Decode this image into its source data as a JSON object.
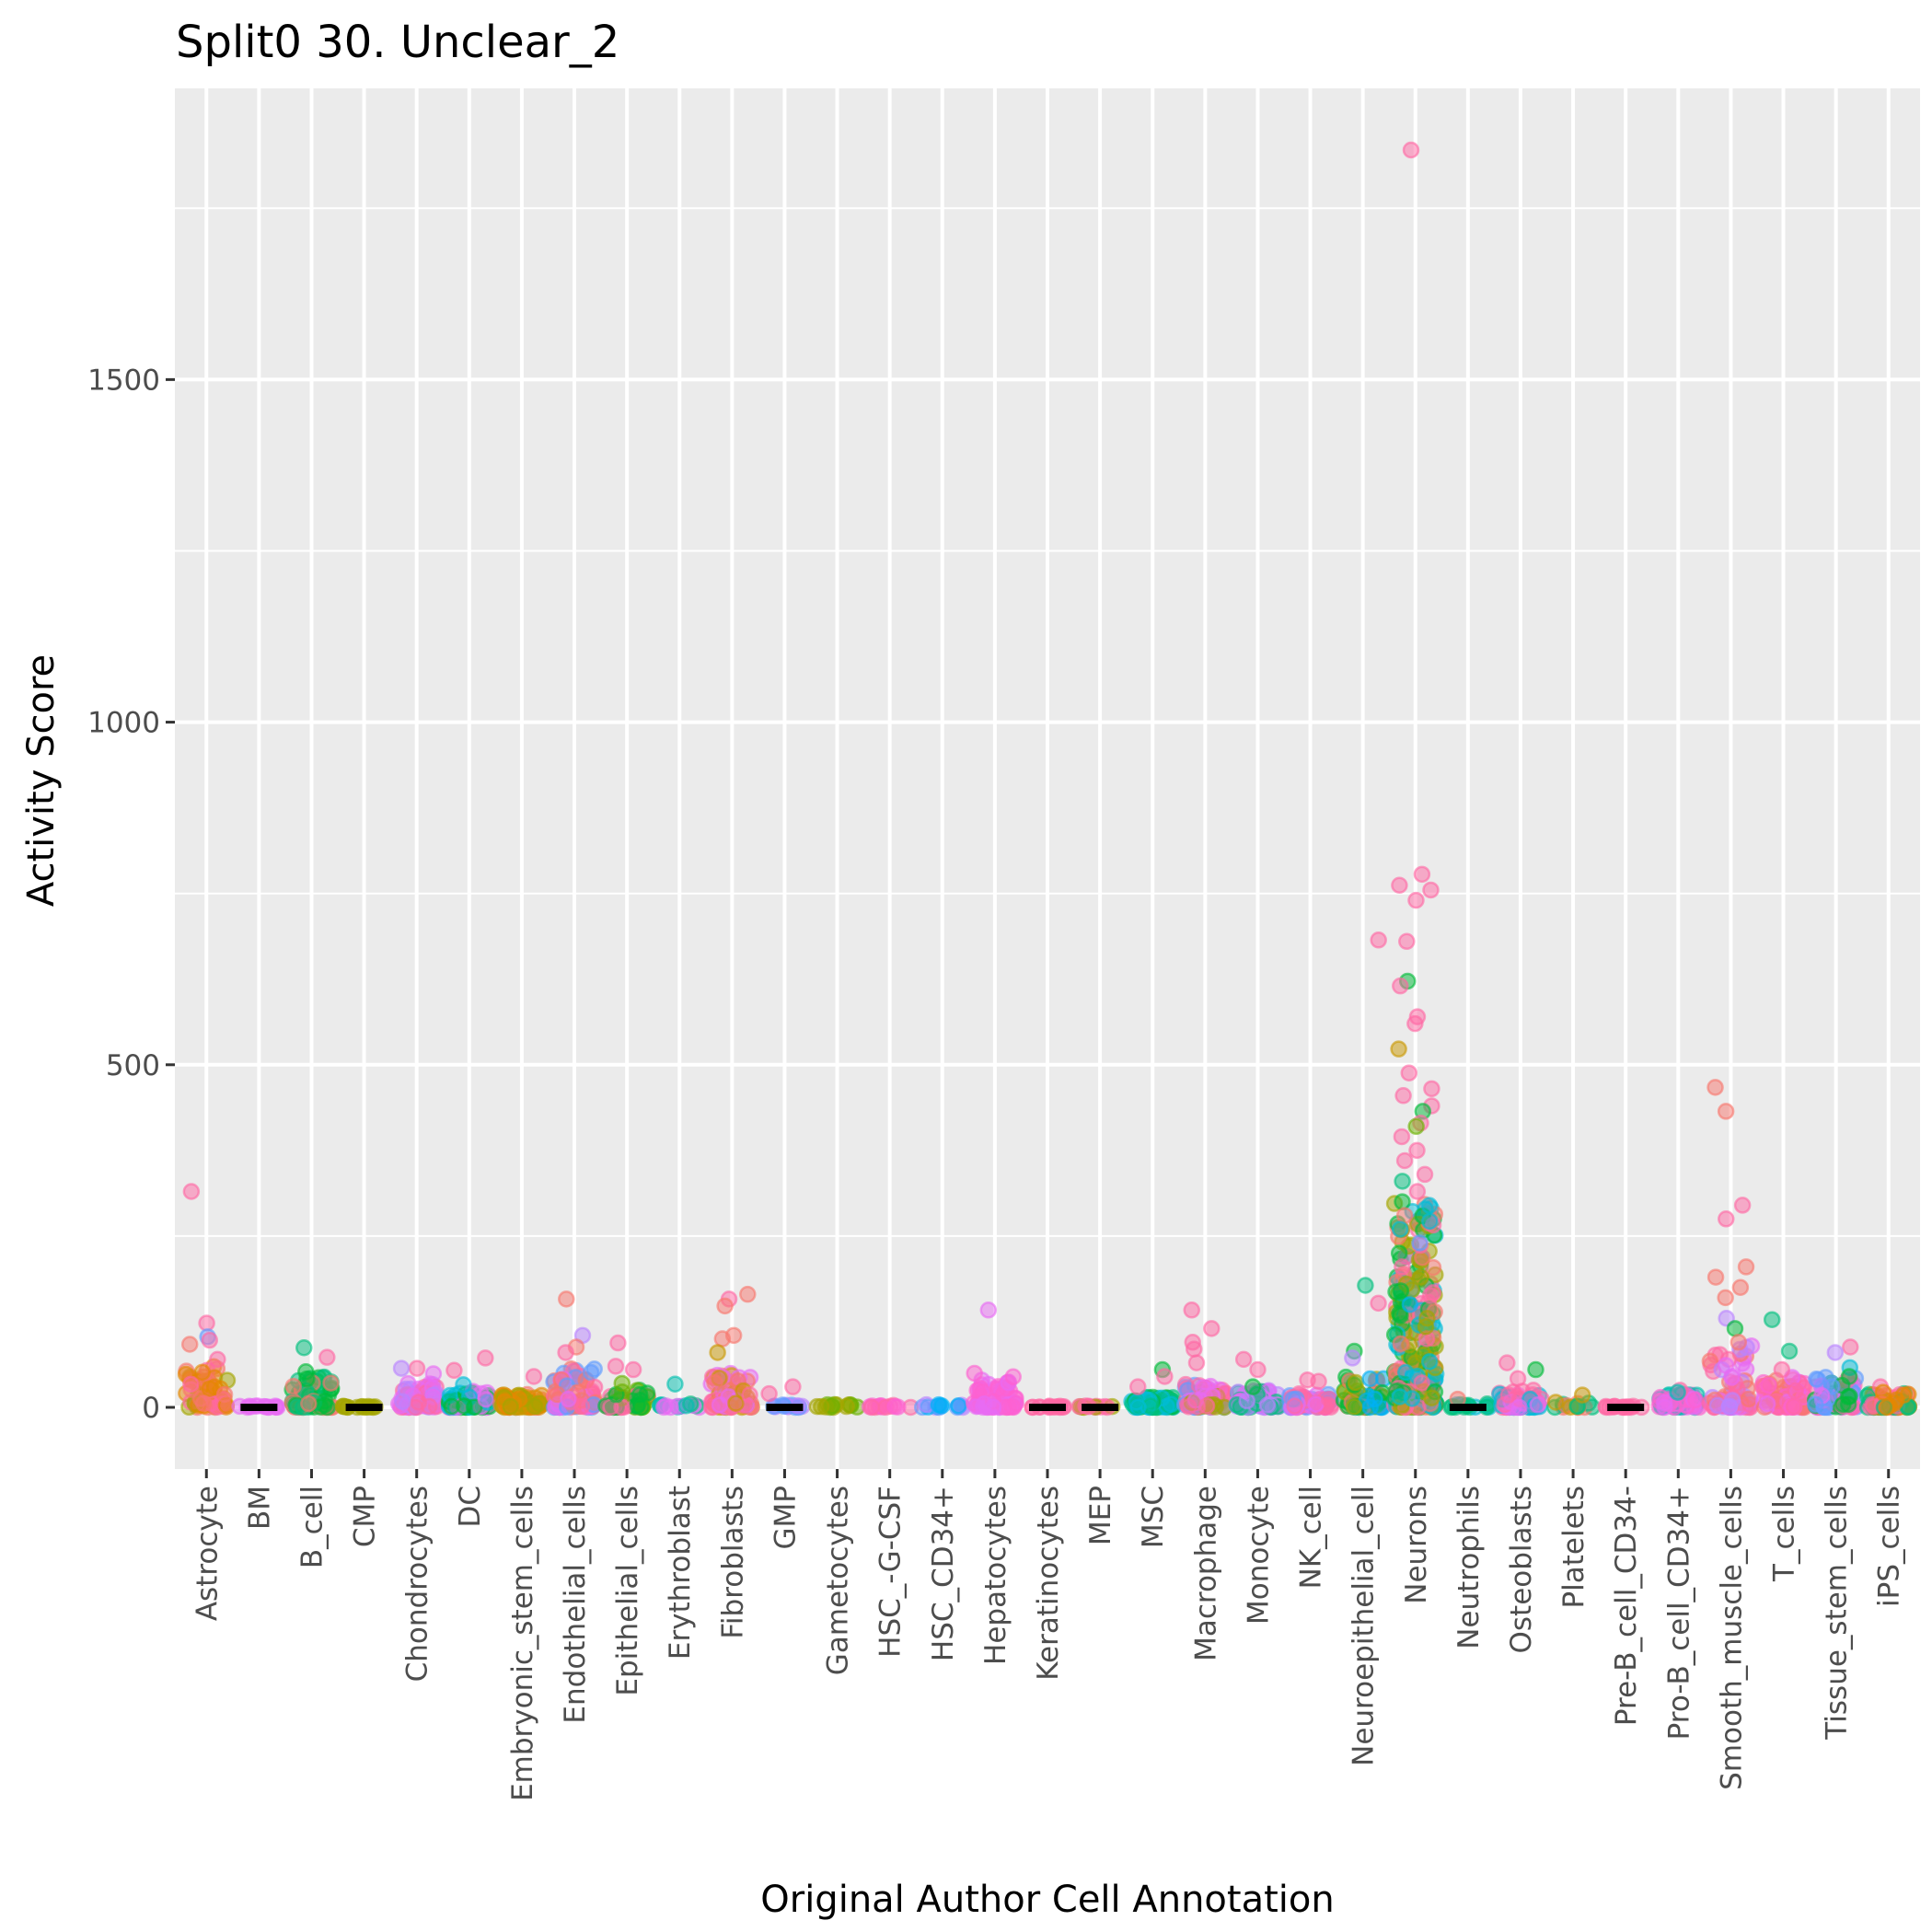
{
  "chart_data": {
    "type": "scatter",
    "subtype": "jitter strip plot",
    "title": "Split0 30. Unclear_2",
    "xlabel": "Original Author Cell Annotation",
    "ylabel": "Activity Score",
    "ylim": [
      -90,
      1925
    ],
    "yticks": [
      0,
      500,
      1000,
      1500
    ],
    "ytick_labels": [
      "0",
      "500",
      "1000",
      "1500"
    ],
    "y_minor_gridlines": [
      250,
      750,
      1250,
      1750
    ],
    "grid": true,
    "legend": "none",
    "categories": [
      "Astrocyte",
      "BM",
      "B_cell",
      "CMP",
      "Chondrocytes",
      "DC",
      "Embryonic_stem_cells",
      "Endothelial_cells",
      "Epithelial_cells",
      "Erythroblast",
      "Fibroblasts",
      "GMP",
      "Gametocytes",
      "HSC_-G-CSF",
      "HSC_CD34+",
      "Hepatocytes",
      "Keratinocytes",
      "MEP",
      "MSC",
      "Macrophage",
      "Monocyte",
      "NK_cell",
      "Neuroepithelial_cell",
      "Neurons",
      "Neutrophils",
      "Osteoblasts",
      "Platelets",
      "Pre-B_cell_CD34-",
      "Pro-B_cell_CD34+",
      "Smooth_muscle_cells",
      "T_cells",
      "Tissue_stem_cells",
      "iPS_cells"
    ],
    "median_markers": [
      "BM",
      "CMP",
      "GMP",
      "Keratinocytes",
      "MEP",
      "Neutrophils",
      "Pre-B_cell_CD34-"
    ],
    "palette": [
      "#F8766D",
      "#E58700",
      "#C99800",
      "#A3A500",
      "#6BB100",
      "#00BA38",
      "#00BF7D",
      "#00C0AF",
      "#00BCD8",
      "#00B0F6",
      "#619CFF",
      "#B983FF",
      "#E76BF3",
      "#FD61D1",
      "#FF67A4"
    ],
    "bulk": [
      {
        "category": "Astrocyte",
        "max_dense": 60,
        "colors": [
          "#FF67A4",
          "#F8766D",
          "#E58700",
          "#A3A500"
        ]
      },
      {
        "category": "BM",
        "max_dense": 2,
        "colors": [
          "#E76BF3"
        ]
      },
      {
        "category": "B_cell",
        "max_dense": 45,
        "colors": [
          "#F8766D",
          "#00BA38",
          "#00BF7D"
        ]
      },
      {
        "category": "CMP",
        "max_dense": 2,
        "colors": [
          "#A3A500"
        ]
      },
      {
        "category": "Chondrocytes",
        "max_dense": 35,
        "colors": [
          "#FF67A4",
          "#B983FF",
          "#E76BF3"
        ]
      },
      {
        "category": "DC",
        "max_dense": 25,
        "colors": [
          "#00BCD8",
          "#00BA38",
          "#E76BF3"
        ]
      },
      {
        "category": "Embryonic_stem_cells",
        "max_dense": 20,
        "colors": [
          "#F8766D",
          "#E58700",
          "#C99800",
          "#A3A500"
        ]
      },
      {
        "category": "Endothelial_cells",
        "max_dense": 60,
        "colors": [
          "#FF67A4",
          "#F8766D",
          "#619CFF",
          "#E76BF3"
        ]
      },
      {
        "category": "Epithelial_cells",
        "max_dense": 25,
        "colors": [
          "#00BA38",
          "#6BB100",
          "#FF67A4"
        ]
      },
      {
        "category": "Erythroblast",
        "max_dense": 5,
        "colors": [
          "#E76BF3",
          "#00BF7D",
          "#00C0AF"
        ]
      },
      {
        "category": "Fibroblasts",
        "max_dense": 50,
        "colors": [
          "#F8766D",
          "#FF67A4",
          "#E76BF3",
          "#C99800"
        ]
      },
      {
        "category": "GMP",
        "max_dense": 5,
        "colors": [
          "#619CFF",
          "#B983FF"
        ]
      },
      {
        "category": "Gametocytes",
        "max_dense": 5,
        "colors": [
          "#A3A500",
          "#6BB100"
        ]
      },
      {
        "category": "HSC_-G-CSF",
        "max_dense": 3,
        "colors": [
          "#FF67A4",
          "#FD61D1"
        ]
      },
      {
        "category": "HSC_CD34+",
        "max_dense": 5,
        "colors": [
          "#619CFF",
          "#00B0F6",
          "#B983FF"
        ]
      },
      {
        "category": "Hepatocytes",
        "max_dense": 50,
        "colors": [
          "#E76BF3",
          "#FD61D1"
        ]
      },
      {
        "category": "Keratinocytes",
        "max_dense": 2,
        "colors": [
          "#FF67A4"
        ]
      },
      {
        "category": "MEP",
        "max_dense": 2,
        "colors": [
          "#FF67A4",
          "#A3A500"
        ]
      },
      {
        "category": "MSC",
        "max_dense": 15,
        "colors": [
          "#00BA38",
          "#00BF7D",
          "#00BCD8"
        ]
      },
      {
        "category": "Macrophage",
        "max_dense": 35,
        "colors": [
          "#E76BF3",
          "#A3A500",
          "#619CFF",
          "#FF67A4"
        ]
      },
      {
        "category": "Monocyte",
        "max_dense": 25,
        "colors": [
          "#E76BF3",
          "#00BF7D",
          "#B983FF"
        ]
      },
      {
        "category": "NK_cell",
        "max_dense": 20,
        "colors": [
          "#FF67A4",
          "#619CFF",
          "#E76BF3"
        ]
      },
      {
        "category": "Neuroepithelial_cell",
        "max_dense": 50,
        "colors": [
          "#A3A500",
          "#00BA38",
          "#00B0F6",
          "#F8766D"
        ]
      },
      {
        "category": "Neurons",
        "max_dense": 300,
        "colors": [
          "#A3A500",
          "#00BA38",
          "#00BCD8",
          "#FF67A4",
          "#F8766D"
        ]
      },
      {
        "category": "Neutrophils",
        "max_dense": 5,
        "colors": [
          "#00BF7D",
          "#00BCD8"
        ]
      },
      {
        "category": "Osteoblasts",
        "max_dense": 25,
        "colors": [
          "#E76BF3",
          "#00BCD8",
          "#FF67A4"
        ]
      },
      {
        "category": "Platelets",
        "max_dense": 8,
        "colors": [
          "#00BF7D",
          "#C99800",
          "#F8766D"
        ]
      },
      {
        "category": "Pre-B_cell_CD34-",
        "max_dense": 2,
        "colors": [
          "#FF67A4"
        ]
      },
      {
        "category": "Pro-B_cell_CD34+",
        "max_dense": 20,
        "colors": [
          "#FD61D1",
          "#00C0AF",
          "#E76BF3"
        ]
      },
      {
        "category": "Smooth_muscle_cells",
        "max_dense": 90,
        "colors": [
          "#E76BF3",
          "#FF67A4",
          "#F8766D",
          "#B983FF"
        ]
      },
      {
        "category": "T_cells",
        "max_dense": 45,
        "colors": [
          "#FD61D1",
          "#FF67A4",
          "#F8766D",
          "#E76BF3"
        ]
      },
      {
        "category": "Tissue_stem_cells",
        "max_dense": 45,
        "colors": [
          "#E76BF3",
          "#FF67A4",
          "#619CFF",
          "#00BA38"
        ]
      },
      {
        "category": "iPS_cells",
        "max_dense": 20,
        "colors": [
          "#FF67A4",
          "#E58700",
          "#00BF7D"
        ]
      }
    ],
    "outliers": [
      {
        "category": "Astrocyte",
        "y": 315,
        "color": "#FF67A4"
      },
      {
        "category": "Astrocyte",
        "y": 123,
        "color": "#FF67A4"
      },
      {
        "category": "Astrocyte",
        "y": 103,
        "color": "#619CFF"
      },
      {
        "category": "Astrocyte",
        "y": 98,
        "color": "#FF67A4"
      },
      {
        "category": "Astrocyte",
        "y": 92,
        "color": "#F8766D"
      },
      {
        "category": "Astrocyte",
        "y": 70,
        "color": "#FF67A4"
      },
      {
        "category": "B_cell",
        "y": 87,
        "color": "#00BF7D"
      },
      {
        "category": "B_cell",
        "y": 73,
        "color": "#FF67A4"
      },
      {
        "category": "B_cell",
        "y": 52,
        "color": "#00BA38"
      },
      {
        "category": "Chondrocytes",
        "y": 57,
        "color": "#FF67A4"
      },
      {
        "category": "Chondrocytes",
        "y": 57,
        "color": "#B983FF"
      },
      {
        "category": "Chondrocytes",
        "y": 49,
        "color": "#E76BF3"
      },
      {
        "category": "DC",
        "y": 72,
        "color": "#FF67A4"
      },
      {
        "category": "DC",
        "y": 54,
        "color": "#FF67A4"
      },
      {
        "category": "DC",
        "y": 33,
        "color": "#00BCD8"
      },
      {
        "category": "Embryonic_stem_cells",
        "y": 45,
        "color": "#FF67A4"
      },
      {
        "category": "Endothelial_cells",
        "y": 158,
        "color": "#F8766D"
      },
      {
        "category": "Endothelial_cells",
        "y": 105,
        "color": "#B983FF"
      },
      {
        "category": "Endothelial_cells",
        "y": 88,
        "color": "#F8766D"
      },
      {
        "category": "Endothelial_cells",
        "y": 80,
        "color": "#FF67A4"
      },
      {
        "category": "Epithelial_cells",
        "y": 94,
        "color": "#FF67A4"
      },
      {
        "category": "Epithelial_cells",
        "y": 60,
        "color": "#FF67A4"
      },
      {
        "category": "Epithelial_cells",
        "y": 55,
        "color": "#FF67A4"
      },
      {
        "category": "Epithelial_cells",
        "y": 35,
        "color": "#6BB100"
      },
      {
        "category": "Erythroblast",
        "y": 34,
        "color": "#00C0AF"
      },
      {
        "category": "Fibroblasts",
        "y": 165,
        "color": "#F8766D"
      },
      {
        "category": "Fibroblasts",
        "y": 158,
        "color": "#FF67A4"
      },
      {
        "category": "Fibroblasts",
        "y": 148,
        "color": "#F8766D"
      },
      {
        "category": "Fibroblasts",
        "y": 105,
        "color": "#F8766D"
      },
      {
        "category": "Fibroblasts",
        "y": 100,
        "color": "#F8766D"
      },
      {
        "category": "Fibroblasts",
        "y": 80,
        "color": "#C99800"
      },
      {
        "category": "GMP",
        "y": 30,
        "color": "#FF67A4"
      },
      {
        "category": "GMP",
        "y": 20,
        "color": "#FF67A4"
      },
      {
        "category": "Hepatocytes",
        "y": 142,
        "color": "#E76BF3"
      },
      {
        "category": "MSC",
        "y": 55,
        "color": "#00BA38"
      },
      {
        "category": "MSC",
        "y": 45,
        "color": "#FF67A4"
      },
      {
        "category": "MSC",
        "y": 30,
        "color": "#FF67A4"
      },
      {
        "category": "Macrophage",
        "y": 142,
        "color": "#FF67A4"
      },
      {
        "category": "Macrophage",
        "y": 115,
        "color": "#FF67A4"
      },
      {
        "category": "Macrophage",
        "y": 95,
        "color": "#FF67A4"
      },
      {
        "category": "Macrophage",
        "y": 85,
        "color": "#FF67A4"
      },
      {
        "category": "Macrophage",
        "y": 65,
        "color": "#FF67A4"
      },
      {
        "category": "Monocyte",
        "y": 70,
        "color": "#FF67A4"
      },
      {
        "category": "Monocyte",
        "y": 55,
        "color": "#FF67A4"
      },
      {
        "category": "Monocyte",
        "y": 30,
        "color": "#00BA38"
      },
      {
        "category": "NK_cell",
        "y": 40,
        "color": "#FF67A4"
      },
      {
        "category": "NK_cell",
        "y": 38,
        "color": "#FF67A4"
      },
      {
        "category": "Neuroepithelial_cell",
        "y": 682,
        "color": "#FF67A4"
      },
      {
        "category": "Neuroepithelial_cell",
        "y": 178,
        "color": "#00BF7D"
      },
      {
        "category": "Neuroepithelial_cell",
        "y": 152,
        "color": "#FF67A4"
      },
      {
        "category": "Neuroepithelial_cell",
        "y": 82,
        "color": "#00BA38"
      },
      {
        "category": "Neuroepithelial_cell",
        "y": 72,
        "color": "#B983FF"
      },
      {
        "category": "Neurons",
        "y": 1835,
        "color": "#FF67A4"
      },
      {
        "category": "Neurons",
        "y": 778,
        "color": "#FF67A4"
      },
      {
        "category": "Neurons",
        "y": 762,
        "color": "#FF67A4"
      },
      {
        "category": "Neurons",
        "y": 755,
        "color": "#FF67A4"
      },
      {
        "category": "Neurons",
        "y": 740,
        "color": "#FF67A4"
      },
      {
        "category": "Neurons",
        "y": 680,
        "color": "#FF67A4"
      },
      {
        "category": "Neurons",
        "y": 622,
        "color": "#00BA38"
      },
      {
        "category": "Neurons",
        "y": 615,
        "color": "#FF67A4"
      },
      {
        "category": "Neurons",
        "y": 570,
        "color": "#FF67A4"
      },
      {
        "category": "Neurons",
        "y": 560,
        "color": "#FF67A4"
      },
      {
        "category": "Neurons",
        "y": 523,
        "color": "#C99800"
      },
      {
        "category": "Neurons",
        "y": 488,
        "color": "#FF67A4"
      },
      {
        "category": "Neurons",
        "y": 465,
        "color": "#FF67A4"
      },
      {
        "category": "Neurons",
        "y": 455,
        "color": "#FF67A4"
      },
      {
        "category": "Neurons",
        "y": 440,
        "color": "#FF67A4"
      },
      {
        "category": "Neurons",
        "y": 432,
        "color": "#00BA38"
      },
      {
        "category": "Neurons",
        "y": 415,
        "color": "#FF67A4"
      },
      {
        "category": "Neurons",
        "y": 410,
        "color": "#6BB100"
      },
      {
        "category": "Neurons",
        "y": 395,
        "color": "#FF67A4"
      },
      {
        "category": "Neurons",
        "y": 375,
        "color": "#FF67A4"
      },
      {
        "category": "Neurons",
        "y": 360,
        "color": "#FF67A4"
      },
      {
        "category": "Neurons",
        "y": 340,
        "color": "#FF67A4"
      },
      {
        "category": "Neurons",
        "y": 330,
        "color": "#00BF7D"
      },
      {
        "category": "Neurons",
        "y": 315,
        "color": "#FF67A4"
      },
      {
        "category": "Neurons",
        "y": 300,
        "color": "#00BA38"
      },
      {
        "category": "Neurons",
        "y": 280,
        "color": "#F8766D"
      },
      {
        "category": "Neurons",
        "y": 260,
        "color": "#00BCD8"
      },
      {
        "category": "Neurons",
        "y": 240,
        "color": "#619CFF"
      },
      {
        "category": "Neurons",
        "y": 225,
        "color": "#00BA38"
      },
      {
        "category": "Neurons",
        "y": 205,
        "color": "#FF67A4"
      },
      {
        "category": "Neurons",
        "y": 190,
        "color": "#A3A500"
      },
      {
        "category": "Neurons",
        "y": 170,
        "color": "#00BA38"
      },
      {
        "category": "Neurons",
        "y": 150,
        "color": "#00B0F6"
      },
      {
        "category": "Neurons",
        "y": 130,
        "color": "#A3A500"
      },
      {
        "category": "Neutrophils",
        "y": 12,
        "color": "#F8766D"
      },
      {
        "category": "Osteoblasts",
        "y": 65,
        "color": "#FF67A4"
      },
      {
        "category": "Osteoblasts",
        "y": 55,
        "color": "#00BA38"
      },
      {
        "category": "Osteoblasts",
        "y": 42,
        "color": "#FF67A4"
      },
      {
        "category": "Platelets",
        "y": 18,
        "color": "#C99800"
      },
      {
        "category": "Pro-B_cell_CD34+",
        "y": 25,
        "color": "#FF67A4"
      },
      {
        "category": "Pro-B_cell_CD34+",
        "y": 22,
        "color": "#00C0AF"
      },
      {
        "category": "Smooth_muscle_cells",
        "y": 467,
        "color": "#F8766D"
      },
      {
        "category": "Smooth_muscle_cells",
        "y": 432,
        "color": "#F8766D"
      },
      {
        "category": "Smooth_muscle_cells",
        "y": 295,
        "color": "#FF67A4"
      },
      {
        "category": "Smooth_muscle_cells",
        "y": 275,
        "color": "#FF67A4"
      },
      {
        "category": "Smooth_muscle_cells",
        "y": 205,
        "color": "#F8766D"
      },
      {
        "category": "Smooth_muscle_cells",
        "y": 190,
        "color": "#F8766D"
      },
      {
        "category": "Smooth_muscle_cells",
        "y": 175,
        "color": "#F8766D"
      },
      {
        "category": "Smooth_muscle_cells",
        "y": 160,
        "color": "#F8766D"
      },
      {
        "category": "Smooth_muscle_cells",
        "y": 130,
        "color": "#B983FF"
      },
      {
        "category": "Smooth_muscle_cells",
        "y": 115,
        "color": "#00BA38"
      },
      {
        "category": "Smooth_muscle_cells",
        "y": 95,
        "color": "#F8766D"
      },
      {
        "category": "T_cells",
        "y": 128,
        "color": "#00BF7D"
      },
      {
        "category": "T_cells",
        "y": 82,
        "color": "#00BF7D"
      },
      {
        "category": "T_cells",
        "y": 55,
        "color": "#FF67A4"
      },
      {
        "category": "Tissue_stem_cells",
        "y": 88,
        "color": "#FF67A4"
      },
      {
        "category": "Tissue_stem_cells",
        "y": 80,
        "color": "#B983FF"
      },
      {
        "category": "Tissue_stem_cells",
        "y": 58,
        "color": "#00BCD8"
      },
      {
        "category": "Tissue_stem_cells",
        "y": 45,
        "color": "#00BA38"
      },
      {
        "category": "iPS_cells",
        "y": 30,
        "color": "#FF67A4"
      },
      {
        "category": "iPS_cells",
        "y": 22,
        "color": "#E58700"
      }
    ]
  },
  "theme": {
    "panel_bg": "#EBEBEB",
    "grid_color": "#FFFFFF",
    "tick_color": "#333333",
    "median_color": "#000000"
  }
}
